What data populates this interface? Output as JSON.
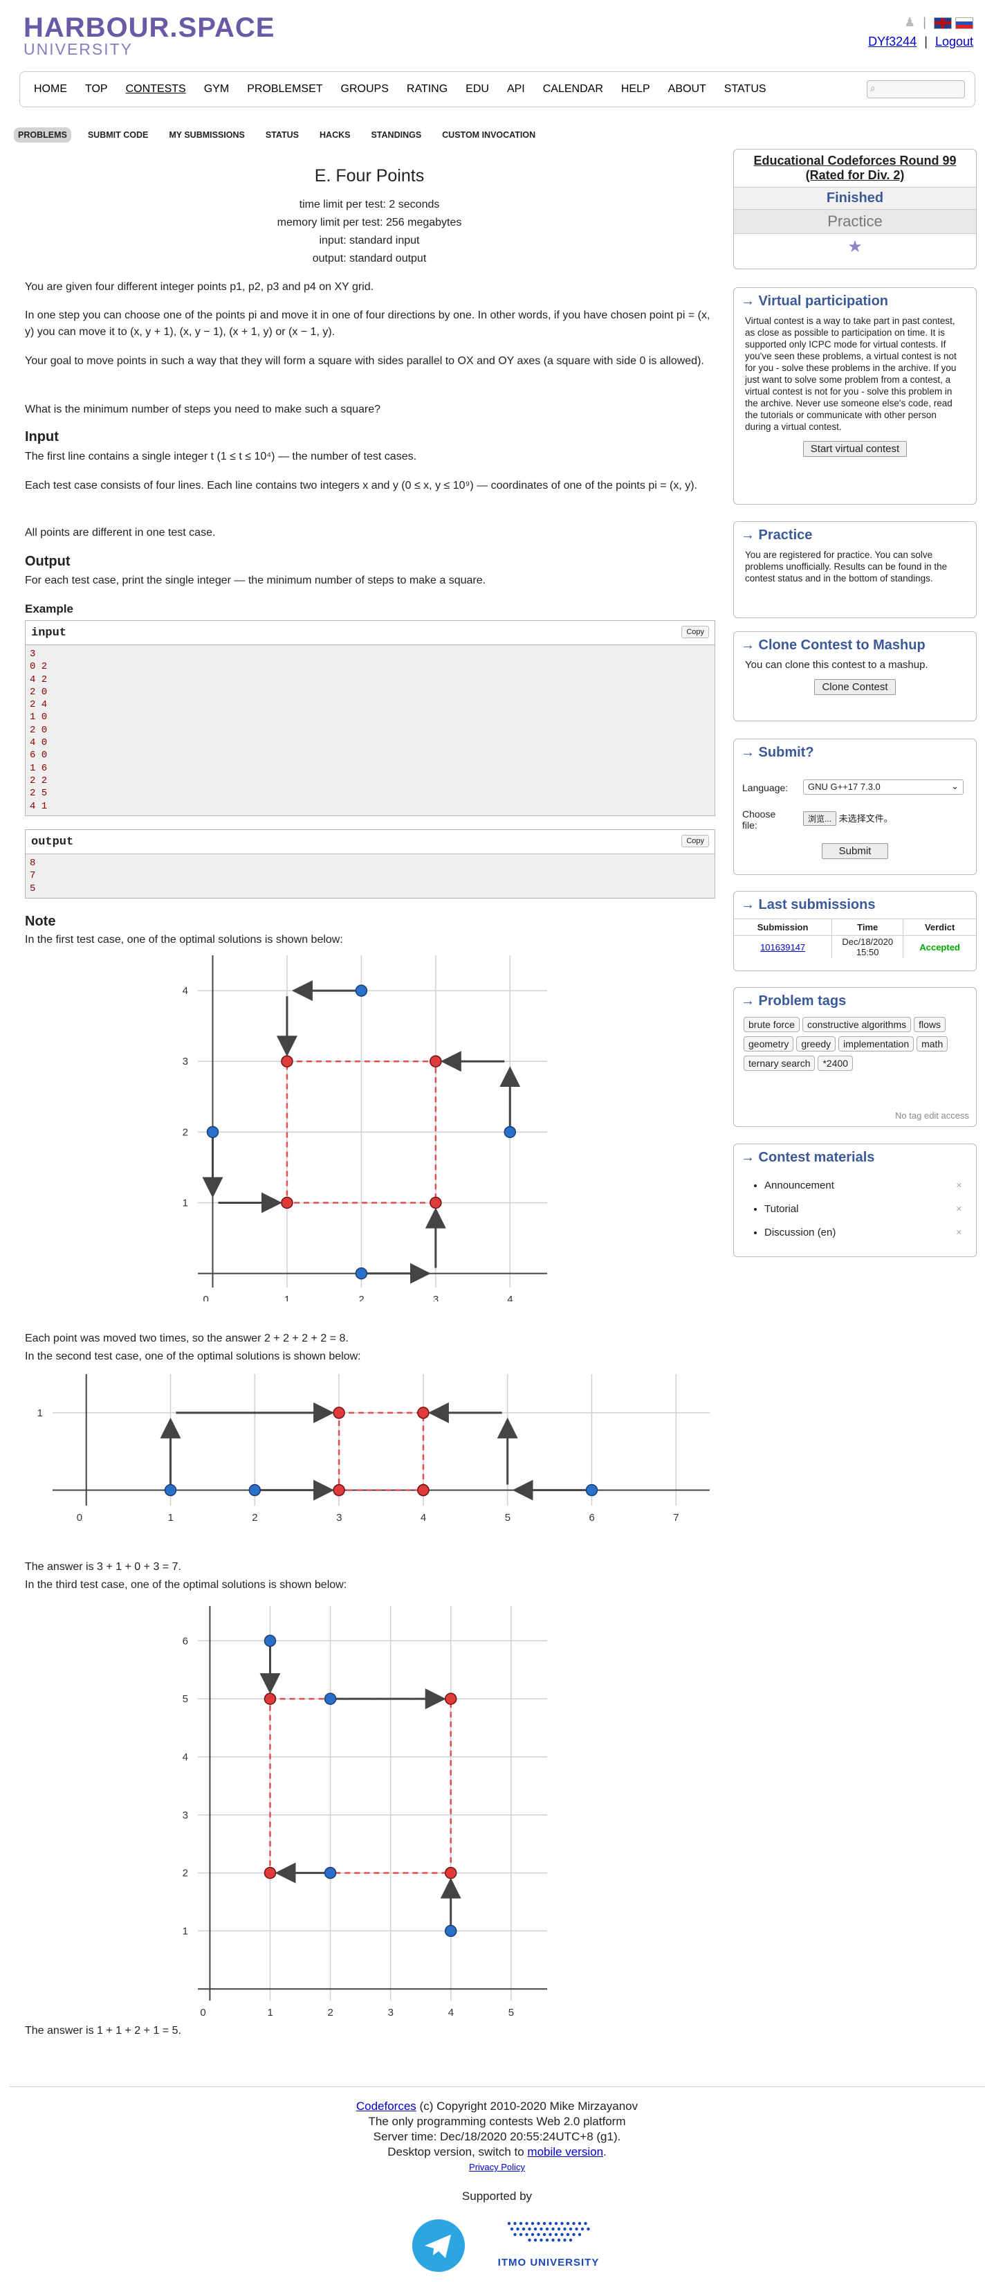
{
  "header": {
    "logo_line1": "HARBOUR.SPACE",
    "logo_line2": "UNIVERSITY",
    "username": "DYf3244",
    "separator": "|",
    "logout": "Logout"
  },
  "menu": {
    "items": [
      "HOME",
      "TOP",
      "CONTESTS",
      "GYM",
      "PROBLEMSET",
      "GROUPS",
      "RATING",
      "EDU",
      "API",
      "CALENDAR",
      "HELP",
      "ABOUT",
      "STATUS"
    ],
    "active": "CONTESTS"
  },
  "subtabs": [
    "PROBLEMS",
    "SUBMIT CODE",
    "MY SUBMISSIONS",
    "STATUS",
    "HACKS",
    "STANDINGS",
    "CUSTOM INVOCATION"
  ],
  "problem": {
    "title": "E. Four Points",
    "time_limit": "time limit per test: 2 seconds",
    "memory_limit": "memory limit per test: 256 megabytes",
    "input": "input: standard input",
    "output": "output: standard output",
    "p1": "You are given four different integer points p1, p2, p3 and p4 on XY grid.",
    "p2": "In one step you can choose one of the points pi and move it in one of four directions by one. In other words, if you have chosen point pi = (x, y) you can move it to (x, y + 1), (x, y − 1), (x + 1, y) or (x − 1, y).",
    "p3": "Your goal to move points in such a way that they will form a square with sides parallel to OX and OY axes (a square with side 0 is allowed).",
    "p4": "What is the minimum number of steps you need to make such a square?",
    "input_title": "Input",
    "input_p1": "The first line contains a single integer t (1 ≤ t ≤ 10⁴) — the number of test cases.",
    "input_p2": "Each test case consists of four lines. Each line contains two integers x and y (0 ≤ x, y ≤ 10⁹) — coordinates of one of the points pi = (x, y).",
    "input_p3": "All points are different in one test case.",
    "output_title": "Output",
    "output_p1": "For each test case, print the single integer — the minimum number of steps to make a square.",
    "example_title": "Example",
    "input_label": "input",
    "output_label": "output",
    "copy": "Copy",
    "sample_input": [
      "3",
      "0 2",
      "4 2",
      "2 0",
      "2 4",
      "1 0",
      "2 0",
      "4 0",
      "6 0",
      "1 6",
      "2 2",
      "2 5",
      "4 1"
    ],
    "sample_output": [
      "8",
      "7",
      "5"
    ],
    "note_title": "Note",
    "note1": "In the first test case, one of the optimal solutions is shown below:",
    "note2a": "Each point was moved two times, so the answer 2 + 2 + 2 + 2 = 8.",
    "note2b": "In the second test case, one of the optimal solutions is shown below:",
    "note3a": "The answer is 3 + 1 + 0 + 3 = 7.",
    "note3b": "In the third test case, one of the optimal solutions is shown below:",
    "note4": "The answer is 1 + 1 + 2 + 1 = 5."
  },
  "sidebar": {
    "contest_name": "Educational Codeforces Round 99 (Rated for Div. 2)",
    "finished": "Finished",
    "practice": "Practice",
    "virtual_title": "→ Virtual participation",
    "virtual_text": "Virtual contest is a way to take part in past contest, as close as possible to participation on time. It is supported only ICPC mode for virtual contests. If you've seen these problems, a virtual contest is not for you - solve these problems in the archive. If you just want to solve some problem from a contest, a virtual contest is not for you - solve this problem in the archive. Never use someone else's code, read the tutorials or communicate with other person during a virtual contest.",
    "virtual_button": "Start virtual contest",
    "practice_title": "→ Practice",
    "practice_text": "You are registered for practice. You can solve problems unofficially. Results can be found in the contest status and in the bottom of standings.",
    "clone_title": "→ Clone Contest to Mashup",
    "clone_text": "You can clone this contest to a mashup.",
    "clone_button": "Clone Contest",
    "submit_title": "→ Submit?",
    "language_label": "Language:",
    "language_value": "GNU G++17 7.3.0",
    "file_label": "Choose file:",
    "file_button": "浏览...",
    "file_status": "未选择文件。",
    "submit_button": "Submit",
    "last_title": "→ Last submissions",
    "last_headers": [
      "Submission",
      "Time",
      "Verdict"
    ],
    "last_row": {
      "id": "101639147",
      "time": "Dec/18/2020 15:50",
      "verdict": "Accepted"
    },
    "tags_title": "→ Problem tags",
    "tags": [
      "brute force",
      "constructive algorithms",
      "flows",
      "geometry",
      "greedy",
      "implementation",
      "math",
      "ternary search",
      "*2400"
    ],
    "tags_note": "No tag edit access",
    "materials_title": "→ Contest materials",
    "materials": [
      "Announcement",
      "Tutorial",
      "Discussion (en)"
    ]
  },
  "footer": {
    "codeforces": "Codeforces",
    "copyright": "(c) Copyright 2010-2020 Mike Mirzayanov",
    "line2": "The only programming contests Web 2.0 platform",
    "line3": "Server time: Dec/18/2020 20:55:24UTC+8 (g1).",
    "line4a": "Desktop version, switch to",
    "line4b": "mobile version",
    "privacy": "Privacy Policy",
    "supported": "Supported by",
    "itmo": "ITMO UNIVERSITY"
  },
  "chart_data": [
    {
      "type": "scatter",
      "x_ticks": [
        0,
        1,
        2,
        3,
        4
      ],
      "y_ticks": [
        1,
        2,
        3,
        4
      ],
      "xlim": [
        -0.2,
        4.5
      ],
      "ylim": [
        -0.2,
        4.5
      ],
      "original_points": [
        [
          0,
          2
        ],
        [
          4,
          2
        ],
        [
          2,
          0
        ],
        [
          2,
          4
        ]
      ],
      "square_points": [
        [
          1,
          1
        ],
        [
          3,
          1
        ],
        [
          1,
          3
        ],
        [
          3,
          3
        ]
      ],
      "moves": [
        [
          [
            0,
            2
          ],
          [
            0,
            1
          ]
        ],
        [
          [
            0,
            1
          ],
          [
            1,
            1
          ]
        ],
        [
          [
            2,
            4
          ],
          [
            1,
            4
          ]
        ],
        [
          [
            1,
            4
          ],
          [
            1,
            3
          ]
        ],
        [
          [
            4,
            2
          ],
          [
            4,
            3
          ]
        ],
        [
          [
            4,
            3
          ],
          [
            3,
            3
          ]
        ],
        [
          [
            2,
            0
          ],
          [
            3,
            0
          ]
        ],
        [
          [
            3,
            0
          ],
          [
            3,
            1
          ]
        ]
      ]
    },
    {
      "type": "scatter",
      "x_ticks": [
        0,
        1,
        2,
        3,
        4,
        5,
        6,
        7
      ],
      "y_ticks": [
        1
      ],
      "xlim": [
        -0.4,
        7.4
      ],
      "ylim": [
        -0.2,
        1.5
      ],
      "original_points": [
        [
          1,
          0
        ],
        [
          2,
          0
        ],
        [
          4,
          0
        ],
        [
          6,
          0
        ]
      ],
      "square_points": [
        [
          3,
          0
        ],
        [
          4,
          0
        ],
        [
          3,
          1
        ],
        [
          4,
          1
        ]
      ],
      "moves": [
        [
          [
            1,
            0
          ],
          [
            1,
            1
          ]
        ],
        [
          [
            1,
            1
          ],
          [
            3,
            1
          ]
        ],
        [
          [
            2,
            0
          ],
          [
            3,
            0
          ]
        ],
        [
          [
            6,
            0
          ],
          [
            5,
            0
          ]
        ],
        [
          [
            5,
            0
          ],
          [
            5,
            1
          ]
        ],
        [
          [
            5,
            1
          ],
          [
            4,
            1
          ]
        ]
      ]
    },
    {
      "type": "scatter",
      "x_ticks": [
        0,
        1,
        2,
        3,
        4,
        5
      ],
      "y_ticks": [
        1,
        2,
        3,
        4,
        5,
        6
      ],
      "xlim": [
        -0.2,
        5.6
      ],
      "ylim": [
        -0.2,
        6.6
      ],
      "original_points": [
        [
          1,
          6
        ],
        [
          2,
          2
        ],
        [
          2,
          5
        ],
        [
          4,
          1
        ]
      ],
      "square_points": [
        [
          1,
          2
        ],
        [
          4,
          2
        ],
        [
          1,
          5
        ],
        [
          4,
          5
        ]
      ],
      "moves": [
        [
          [
            1,
            6
          ],
          [
            1,
            5
          ]
        ],
        [
          [
            2,
            2
          ],
          [
            1,
            2
          ]
        ],
        [
          [
            2,
            5
          ],
          [
            4,
            5
          ]
        ],
        [
          [
            4,
            1
          ],
          [
            4,
            2
          ]
        ]
      ]
    }
  ]
}
